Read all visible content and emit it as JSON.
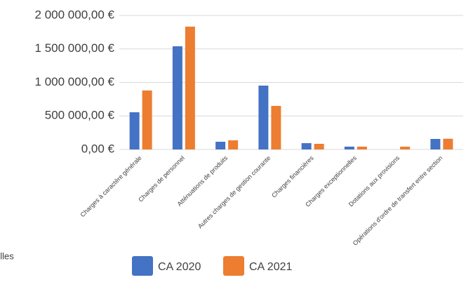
{
  "chart_data": {
    "type": "bar",
    "categories": [
      "Charges à caractère générale",
      "Charges de personnel",
      "Atténuations de produits",
      "Autres charges de gestion courante",
      "Charges financières",
      "Charges exceptionnelles",
      "Dotations aux provisions",
      "Opérations d'ordre de transfert entre section"
    ],
    "series": [
      {
        "name": "CA 2020",
        "color": "#4472c4",
        "values": [
          555000,
          1540000,
          115000,
          953000,
          94000,
          42000,
          0,
          157000
        ]
      },
      {
        "name": "CA 2021",
        "color": "#ed7d31",
        "values": [
          880000,
          1833000,
          136000,
          650000,
          84000,
          42000,
          42000,
          160000
        ]
      }
    ],
    "ylim": [
      0,
      2000000
    ],
    "yticks": [
      {
        "value": 0,
        "label": "0,00 €"
      },
      {
        "value": 500000,
        "label": "500 000,00 €"
      },
      {
        "value": 1000000,
        "label": "1 000 000,00 €"
      },
      {
        "value": 1500000,
        "label": "1 500 000,00 €"
      },
      {
        "value": 2000000,
        "label": "2 000 000,00 €"
      }
    ],
    "grid": true,
    "legend": "bottom",
    "note": "elles"
  }
}
